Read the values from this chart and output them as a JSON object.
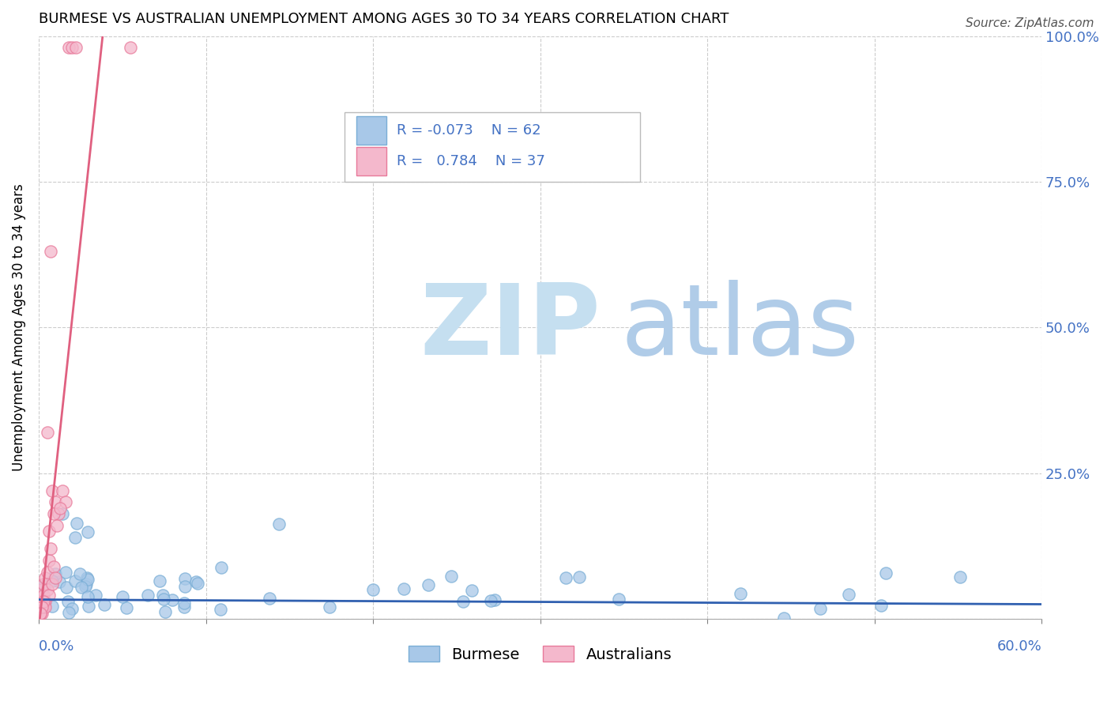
{
  "title": "BURMESE VS AUSTRALIAN UNEMPLOYMENT AMONG AGES 30 TO 34 YEARS CORRELATION CHART",
  "source": "Source: ZipAtlas.com",
  "ylabel": "Unemployment Among Ages 30 to 34 years",
  "xlim": [
    0.0,
    0.6
  ],
  "ylim": [
    0.0,
    1.0
  ],
  "burmese_color": "#a8c8e8",
  "burmese_edge_color": "#7aaed6",
  "australians_color": "#f4b8cc",
  "australians_edge_color": "#e87a9a",
  "burmese_line_color": "#3060b0",
  "australians_line_color": "#e06080",
  "watermark_zip": "ZIP",
  "watermark_atlas": "atlas",
  "watermark_color_zip": "#c8dff0",
  "watermark_color_atlas": "#b0cce8",
  "right_tick_color": "#4472c4",
  "legend_text_color": "#4472c4",
  "title_fontsize": 13,
  "source_fontsize": 11
}
